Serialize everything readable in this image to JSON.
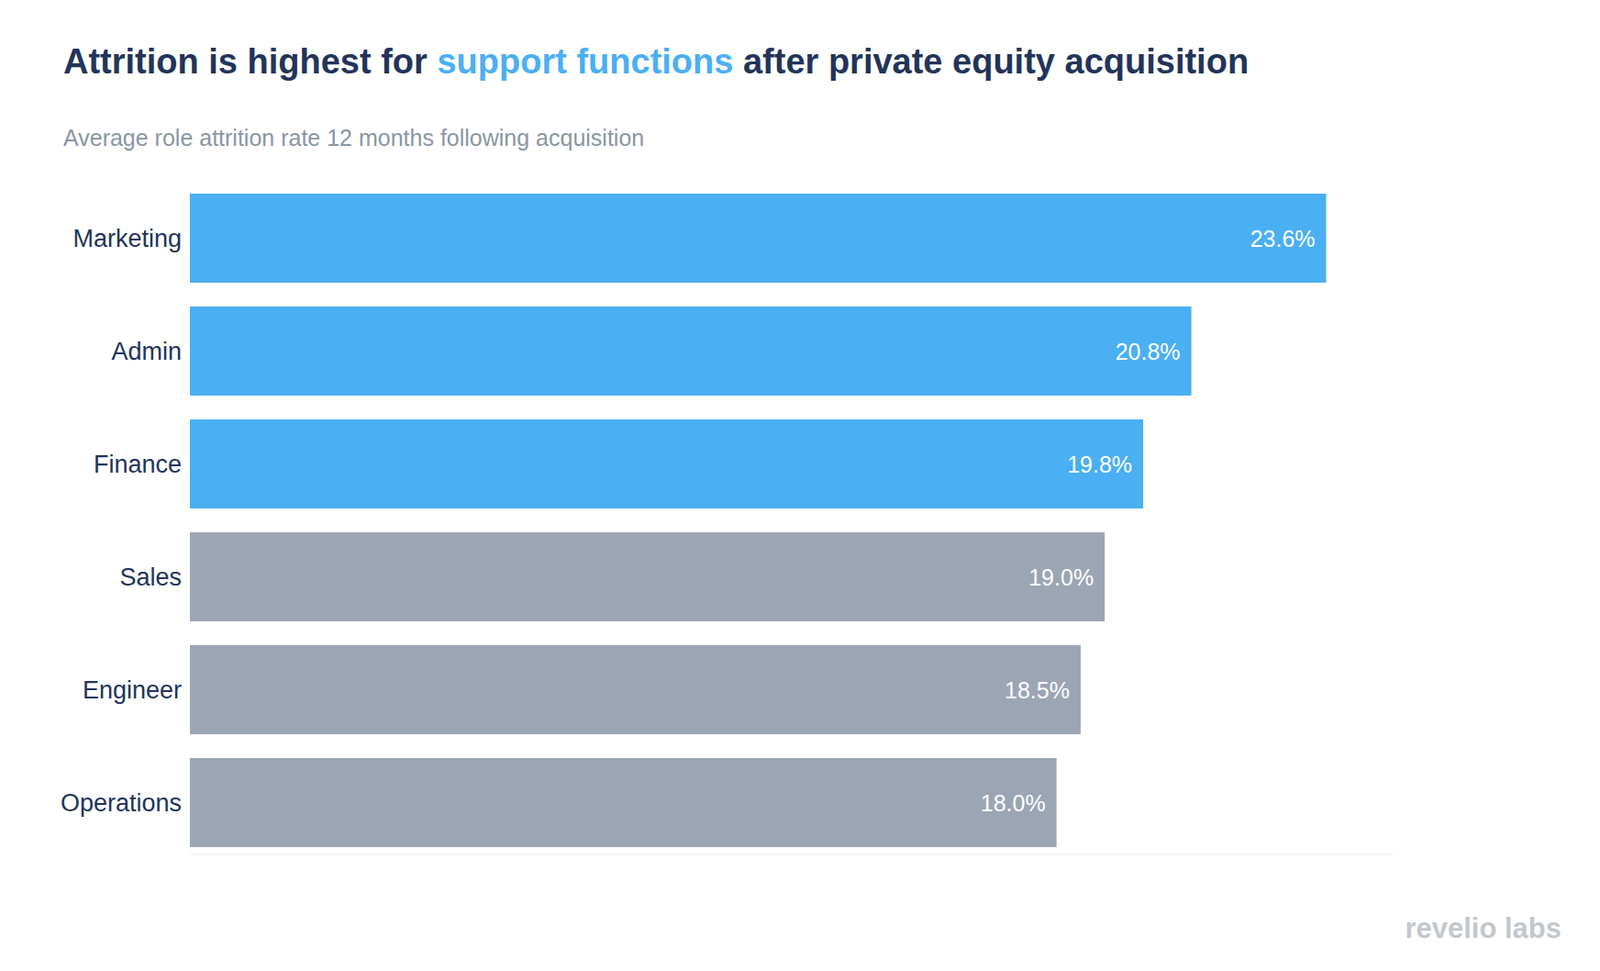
{
  "chart_data": {
    "type": "bar",
    "orientation": "horizontal",
    "title": "Attrition is highest for support functions after private equity acquisition",
    "title_highlight": "support functions",
    "subtitle": "Average role attrition rate 12 months following acquisition",
    "categories": [
      "Marketing",
      "Admin",
      "Finance",
      "Sales",
      "Engineer",
      "Operations"
    ],
    "values": [
      23.6,
      20.8,
      19.8,
      19.0,
      18.5,
      18.0
    ],
    "value_labels": [
      "23.6%",
      "20.8%",
      "19.8%",
      "19.0%",
      "18.5%",
      "18.0%"
    ],
    "colors": [
      "#4aaff3",
      "#4aaff3",
      "#4aaff3",
      "#9ca5b4",
      "#9ca5b4",
      "#9ca5b4"
    ],
    "xlim": [
      0,
      25
    ],
    "data_labels": true,
    "tick_labels": "y",
    "grid": false,
    "annotation": "revelio labs"
  }
}
